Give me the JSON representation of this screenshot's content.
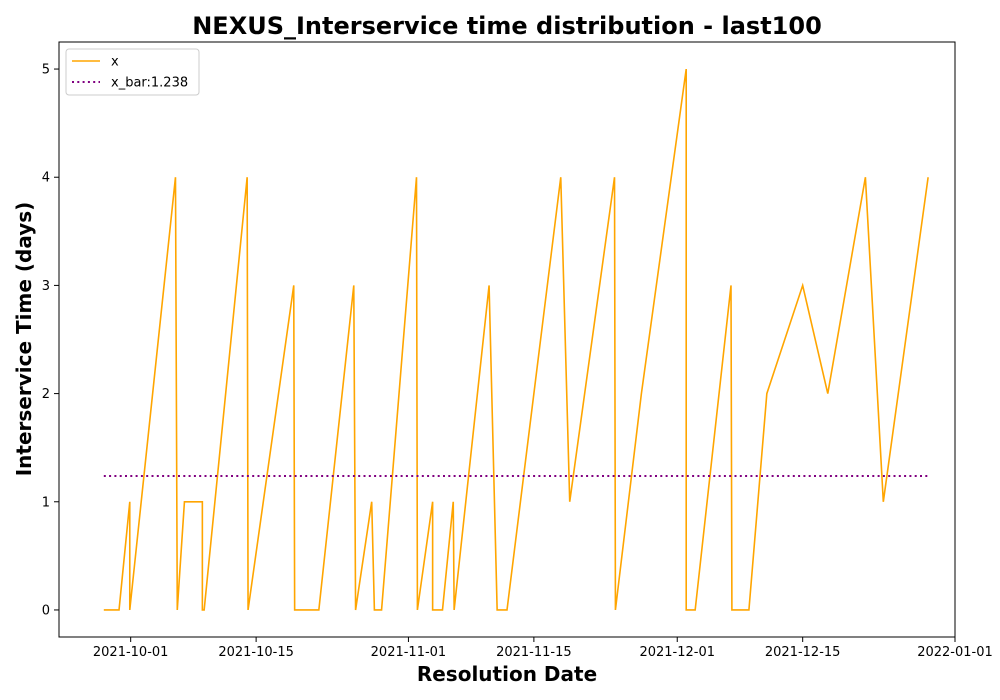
{
  "chart_data": {
    "type": "line",
    "title": "NEXUS_Interservice time distribution - last100",
    "xlabel": "Resolution Date",
    "ylabel": "Interservice Time (days)",
    "xlim": [
      "2021-09-23",
      "2022-01-01"
    ],
    "ylim": [
      -0.25,
      5.25
    ],
    "x_ticks": [
      "2021-10-01",
      "2021-10-15",
      "2021-11-01",
      "2021-11-15",
      "2021-12-01",
      "2021-12-15",
      "2022-01-01"
    ],
    "y_ticks": [
      0,
      1,
      2,
      3,
      4,
      5
    ],
    "grid": false,
    "legend_position": "upper-left",
    "series": [
      {
        "name": "x",
        "style": "solid",
        "color": "#ffa500",
        "points": [
          [
            "2021-09-28",
            0
          ],
          [
            "2021-09-29.7",
            0
          ],
          [
            "2021-09-30.9",
            1
          ],
          [
            "2021-09-30.9",
            0
          ],
          [
            "2021-10-06.0",
            4
          ],
          [
            "2021-10-06.2",
            0
          ],
          [
            "2021-10-07.0",
            1
          ],
          [
            "2021-10-09.0",
            1
          ],
          [
            "2021-10-09.0",
            0
          ],
          [
            "2021-10-09.2",
            0
          ],
          [
            "2021-10-14.0",
            4
          ],
          [
            "2021-10-14.1",
            0
          ],
          [
            "2021-10-19.2",
            3
          ],
          [
            "2021-10-19.3",
            0
          ],
          [
            "2021-10-22.0",
            0
          ],
          [
            "2021-10-25.9",
            3
          ],
          [
            "2021-10-26.1",
            0
          ],
          [
            "2021-10-27.9",
            1
          ],
          [
            "2021-10-28.2",
            0
          ],
          [
            "2021-10-29.0",
            0
          ],
          [
            "2021-11-01.9",
            4
          ],
          [
            "2021-11-02.0",
            0
          ],
          [
            "2021-11-03.7",
            1
          ],
          [
            "2021-11-03.7",
            0
          ],
          [
            "2021-11-04.8",
            0
          ],
          [
            "2021-11-06.0",
            1
          ],
          [
            "2021-11-06.1",
            0
          ],
          [
            "2021-11-10.0",
            3
          ],
          [
            "2021-11-10.9",
            0
          ],
          [
            "2021-11-12.0",
            0
          ],
          [
            "2021-11-18.0",
            4
          ],
          [
            "2021-11-19.0",
            1
          ],
          [
            "2021-11-24.0",
            4
          ],
          [
            "2021-11-24.1",
            0
          ],
          [
            "2021-11-27.0",
            2
          ],
          [
            "2021-12-02.0",
            5
          ],
          [
            "2021-12-02.0",
            0
          ],
          [
            "2021-12-03.0",
            0
          ],
          [
            "2021-12-07.0",
            3
          ],
          [
            "2021-12-07.1",
            0
          ],
          [
            "2021-12-09.0",
            0
          ],
          [
            "2021-12-11.0",
            2
          ],
          [
            "2021-12-15.0",
            3
          ],
          [
            "2021-12-17.8",
            2
          ],
          [
            "2021-12-22.0",
            4
          ],
          [
            "2021-12-24.0",
            1
          ],
          [
            "2021-12-29.0",
            4
          ]
        ]
      },
      {
        "name": "x_bar:1.238",
        "style": "dotted",
        "color": "#800080",
        "points": [
          [
            "2021-09-28",
            1.238
          ],
          [
            "2021-12-29",
            1.238
          ]
        ]
      }
    ]
  }
}
